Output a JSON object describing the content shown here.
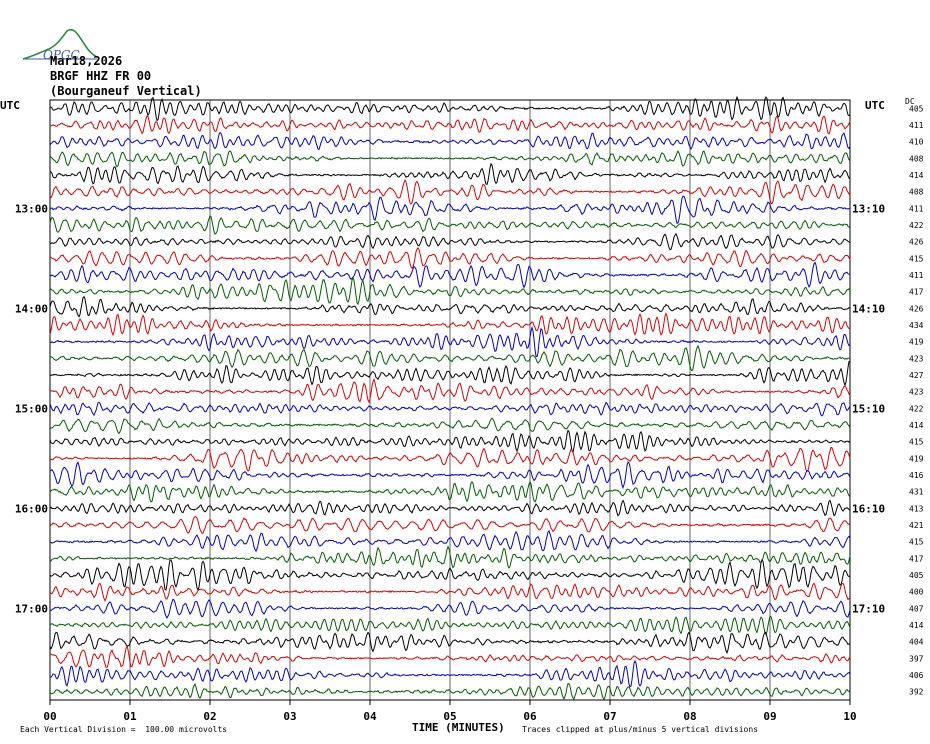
{
  "logo_text": "OPGC",
  "header": {
    "date": "Mar18,2026",
    "station": "BRGF HHZ FR 00",
    "location": "(Bourganeuf Vertical)"
  },
  "axis": {
    "left_label": "UTC",
    "right_label": "UTC",
    "dc_label": "DC",
    "xlabel": "TIME (MINUTES)",
    "footer_left": "Each Vertical Division =  100.00 microvolts",
    "footer_right": "Traces clipped at plus/minus 5 vertical divisions"
  },
  "chart_data": {
    "type": "line",
    "x_range": [
      0,
      10
    ],
    "x_ticks": [
      "00",
      "01",
      "02",
      "03",
      "04",
      "05",
      "06",
      "07",
      "08",
      "09",
      "10"
    ],
    "left_ticks": [
      "13:00",
      "14:00",
      "15:00",
      "16:00",
      "17:00"
    ],
    "right_ticks": [
      "13:10",
      "14:10",
      "15:10",
      "16:10",
      "17:10"
    ],
    "trace_colors": [
      "#000000",
      "#e00000",
      "#0000d0",
      "#006000"
    ],
    "dc_offsets": [
      405,
      411,
      410,
      408,
      414,
      408,
      411,
      422,
      426,
      415,
      411,
      417,
      426,
      434,
      419,
      423,
      427,
      423,
      422,
      414,
      415,
      419,
      416,
      431,
      413,
      421,
      415,
      417,
      405,
      400,
      407,
      414,
      404,
      397,
      406,
      392
    ],
    "grid": true
  }
}
